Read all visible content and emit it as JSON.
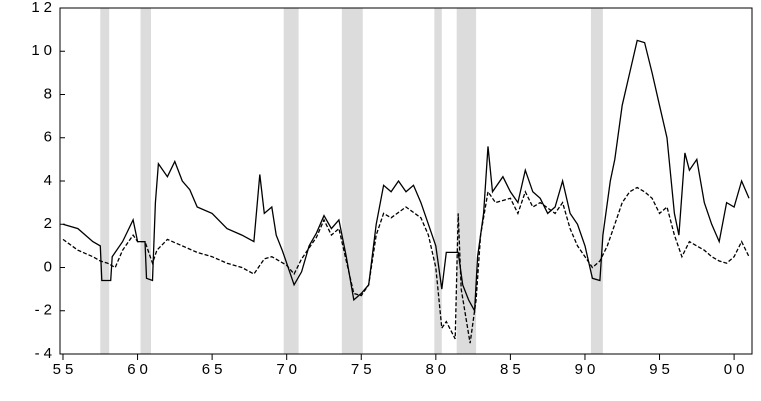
{
  "chart_data": {
    "type": "line",
    "xlim": [
      1954.8,
      2001.2
    ],
    "xticks": [
      {
        "value": 1955,
        "label": "55"
      },
      {
        "value": 1960,
        "label": "60"
      },
      {
        "value": 1965,
        "label": "65"
      },
      {
        "value": 1970,
        "label": "70"
      },
      {
        "value": 1975,
        "label": "75"
      },
      {
        "value": 1980,
        "label": "80"
      },
      {
        "value": 1985,
        "label": "85"
      },
      {
        "value": 1990,
        "label": "90"
      },
      {
        "value": 1995,
        "label": "95"
      },
      {
        "value": 2000,
        "label": "00"
      }
    ],
    "ylim": [
      -4,
      12
    ],
    "yticks": [
      -4,
      -2,
      0,
      2,
      4,
      6,
      8,
      10,
      12
    ],
    "shaded_color": "#dcdcdc",
    "shaded": [
      [
        1957.5,
        1958.1
      ],
      [
        1960.2,
        1960.9
      ],
      [
        1969.8,
        1970.8
      ],
      [
        1973.7,
        1975.1
      ],
      [
        1979.9,
        1980.4
      ],
      [
        1981.4,
        1982.7
      ],
      [
        1990.4,
        1991.2
      ]
    ],
    "series": [
      {
        "color": "#000000",
        "dash": false,
        "x": [
          1955,
          1956,
          1957,
          1957.5,
          1957.6,
          1958.2,
          1958.3,
          1959,
          1959.7,
          1960,
          1960.5,
          1960.6,
          1961,
          1961.2,
          1961.4,
          1962,
          1962.5,
          1963,
          1963.5,
          1964,
          1965,
          1966,
          1967,
          1967.8,
          1968.2,
          1968.5,
          1969,
          1969.3,
          1969.7,
          1970,
          1970.5,
          1971,
          1971.5,
          1972,
          1972.5,
          1973,
          1973.5,
          1974,
          1974.5,
          1975,
          1975.5,
          1976,
          1976.5,
          1977,
          1977.5,
          1978,
          1978.5,
          1979,
          1979.5,
          1980,
          1980.4,
          1980.7,
          1981.5,
          1981.8,
          1982.2,
          1982.6,
          1982.8,
          1983.2,
          1983.5,
          1983.8,
          1984.5,
          1985,
          1985.5,
          1986,
          1986.5,
          1987,
          1987.5,
          1988,
          1988.5,
          1989,
          1989.5,
          1990,
          1990.5,
          1991,
          1991.2,
          1991.7,
          1992,
          1992.5,
          1993,
          1993.5,
          1994,
          1994.5,
          1995,
          1995.5,
          1996,
          1996.3,
          1996.7,
          1997,
          1997.5,
          1998,
          1998.5,
          1999,
          1999.5,
          2000,
          2000.5,
          2001
        ],
        "values": [
          2.0,
          1.8,
          1.2,
          1.0,
          -0.6,
          -0.6,
          0.5,
          1.2,
          2.2,
          1.2,
          1.2,
          -0.5,
          -0.6,
          3.0,
          4.8,
          4.2,
          4.9,
          4.0,
          3.6,
          2.8,
          2.5,
          1.8,
          1.5,
          1.2,
          4.3,
          2.5,
          2.8,
          1.5,
          0.8,
          0.2,
          -0.8,
          -0.2,
          1.0,
          1.6,
          2.4,
          1.8,
          2.2,
          0.5,
          -1.5,
          -1.2,
          -0.8,
          2.0,
          3.8,
          3.5,
          4.0,
          3.5,
          3.8,
          3.0,
          2.0,
          1.0,
          -1.0,
          0.7,
          0.7,
          -0.8,
          -1.5,
          -2.0,
          0.5,
          2.5,
          5.6,
          3.5,
          4.2,
          3.5,
          3.0,
          4.5,
          3.5,
          3.2,
          2.5,
          2.8,
          4.0,
          2.5,
          2.0,
          1.0,
          -0.5,
          -0.6,
          1.5,
          4.0,
          5.0,
          7.5,
          9.0,
          10.5,
          10.4,
          9.0,
          7.5,
          6.0,
          2.5,
          1.5,
          5.3,
          4.5,
          5.0,
          3.0,
          2.0,
          1.2,
          3.0,
          2.8,
          4.0,
          3.2
        ]
      },
      {
        "color": "#000000",
        "dash": true,
        "x": [
          1955,
          1956,
          1957,
          1957.5,
          1958,
          1958.5,
          1959,
          1959.7,
          1960,
          1960.5,
          1961,
          1961.3,
          1962,
          1963,
          1964,
          1965,
          1966,
          1967,
          1967.8,
          1968.5,
          1969,
          1970,
          1970.5,
          1971,
          1972,
          1972.5,
          1973,
          1973.5,
          1974,
          1974.5,
          1975,
          1975.5,
          1976,
          1976.5,
          1977,
          1978,
          1979,
          1979.5,
          1980,
          1980.4,
          1980.7,
          1981.3,
          1981.5,
          1981.7,
          1982.3,
          1982.7,
          1983,
          1983.5,
          1984,
          1985,
          1985.5,
          1986,
          1986.5,
          1987,
          1988,
          1988.5,
          1989,
          1989.5,
          1990,
          1990.5,
          1991,
          1991.5,
          1992,
          1992.5,
          1993,
          1993.5,
          1994,
          1994.5,
          1995,
          1995.5,
          1996,
          1996.5,
          1997,
          1997.5,
          1998,
          1998.5,
          1999,
          1999.5,
          2000,
          2000.5,
          2001
        ],
        "values": [
          1.3,
          0.8,
          0.5,
          0.3,
          0.2,
          0.0,
          0.8,
          1.5,
          1.2,
          1.2,
          0.2,
          0.8,
          1.3,
          1.0,
          0.7,
          0.5,
          0.2,
          0.0,
          -0.3,
          0.4,
          0.5,
          0.1,
          -0.3,
          0.4,
          1.4,
          2.2,
          1.5,
          1.8,
          0.3,
          -1.2,
          -1.3,
          -0.8,
          1.5,
          2.5,
          2.3,
          2.8,
          2.3,
          1.5,
          0.0,
          -2.8,
          -2.5,
          -3.3,
          2.5,
          -1.0,
          -3.5,
          -1.5,
          1.5,
          3.5,
          3.0,
          3.2,
          2.5,
          3.5,
          2.8,
          3.0,
          2.5,
          3.0,
          1.8,
          1.0,
          0.5,
          0.0,
          0.3,
          1.0,
          2.0,
          3.0,
          3.5,
          3.7,
          3.5,
          3.2,
          2.5,
          2.8,
          1.5,
          0.5,
          1.2,
          1.0,
          0.8,
          0.5,
          0.3,
          0.2,
          0.5,
          1.2,
          0.5
        ]
      }
    ]
  }
}
